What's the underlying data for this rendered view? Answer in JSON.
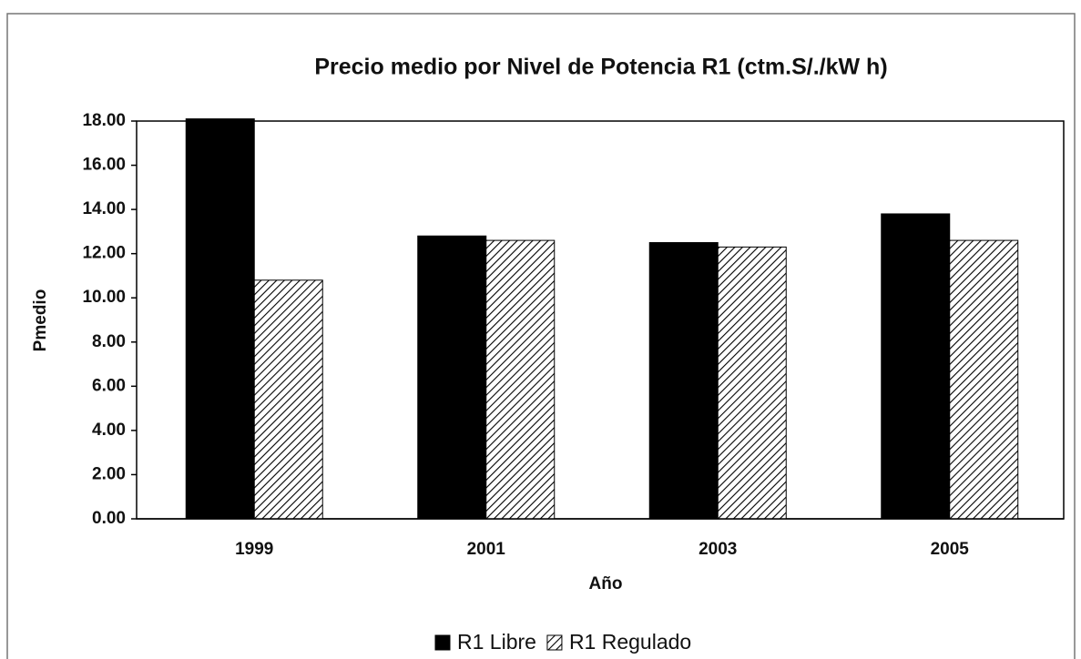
{
  "chart_data": {
    "type": "bar",
    "title": "Precio medio por Nivel de Potencia R1 (ctm.S/./kW h)",
    "x_label": "Año",
    "y_label": "Pmedio",
    "categories": [
      "1999",
      "2001",
      "2003",
      "2005"
    ],
    "series": [
      {
        "name": "R1 Libre",
        "color": "#000000",
        "values": [
          18.1,
          12.8,
          12.5,
          13.8
        ]
      },
      {
        "name": "R1 Regulado",
        "color": "#000000",
        "hatch": true,
        "values": [
          10.8,
          12.6,
          12.3,
          12.6
        ]
      }
    ],
    "ylim": [
      0,
      18
    ],
    "yticks": [
      {
        "value": 0,
        "label": "0.00"
      },
      {
        "value": 2,
        "label": "2.00"
      },
      {
        "value": 4,
        "label": "4.00"
      },
      {
        "value": 6,
        "label": "6.00"
      },
      {
        "value": 8,
        "label": "8.00"
      },
      {
        "value": 10,
        "label": "10.00"
      },
      {
        "value": 12,
        "label": "12.00"
      },
      {
        "value": 14,
        "label": "14.00"
      },
      {
        "value": 16,
        "label": "16.00"
      },
      {
        "value": 18,
        "label": "18.00"
      }
    ],
    "legend": "bottom"
  }
}
